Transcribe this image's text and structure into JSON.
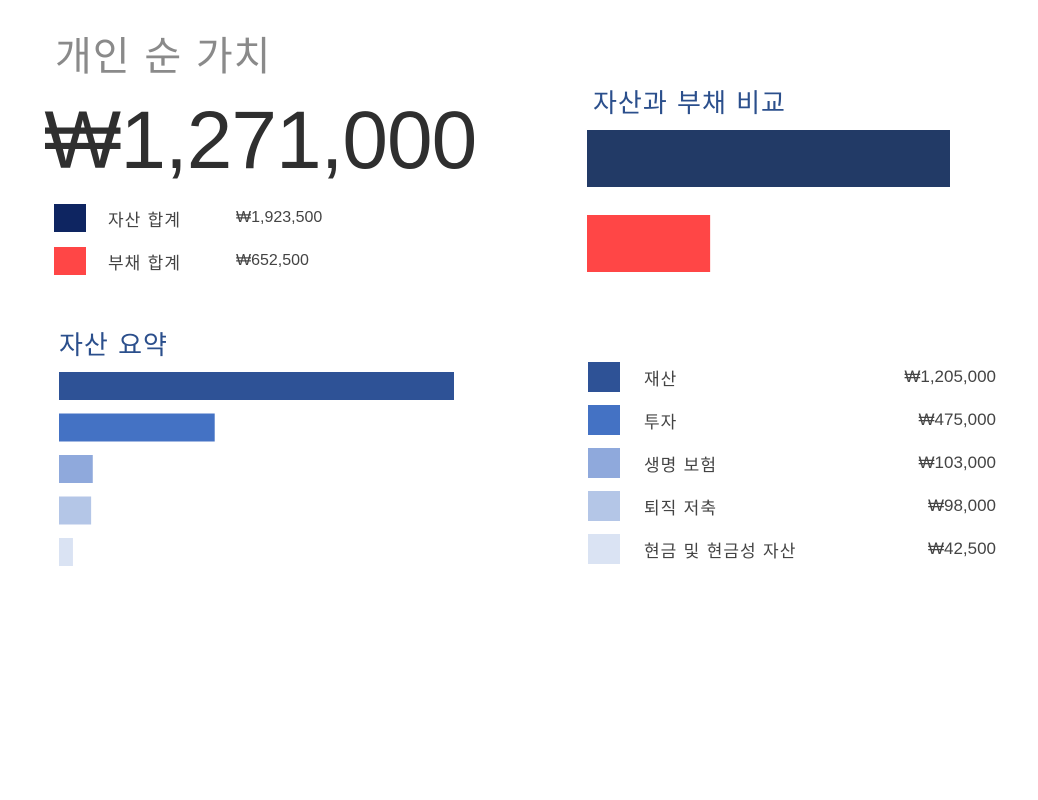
{
  "page": {
    "title": "개인 순 가치",
    "net_worth": "₩1,271,000"
  },
  "totals": [
    {
      "label": "자산 합계",
      "value": "₩1,923,500",
      "color": "#0e2561"
    },
    {
      "label": "부채 합계",
      "value": "₩652,500",
      "color": "#ff4646"
    }
  ],
  "assets": [
    {
      "label": "재산",
      "value": "₩1,205,000",
      "color": "#2e5296"
    },
    {
      "label": "투자",
      "value": "₩475,000",
      "color": "#4472c4"
    },
    {
      "label": "생명 보험",
      "value": "₩103,000",
      "color": "#8fa9dc"
    },
    {
      "label": "퇴직 저축",
      "value": "₩98,000",
      "color": "#b4c6e7"
    },
    {
      "label": "현금 및 현금성 자산",
      "value": "₩42,500",
      "color": "#dae3f3"
    }
  ],
  "chart_data": [
    {
      "type": "bar",
      "orientation": "horizontal",
      "title": "자산과 부채 비교",
      "categories": [
        "자산 합계",
        "부채 합계"
      ],
      "values": [
        1923500,
        652500
      ],
      "colors": [
        "#223a66",
        "#ff4646"
      ],
      "grid": false
    },
    {
      "type": "bar",
      "orientation": "horizontal",
      "title": "자산 요약",
      "categories": [
        "재산",
        "투자",
        "생명 보험",
        "퇴직 저축",
        "현금 및 현금성 자산"
      ],
      "values": [
        1205000,
        475000,
        103000,
        98000,
        42500
      ],
      "colors": [
        "#2e5296",
        "#4472c4",
        "#8fa9dc",
        "#b4c6e7",
        "#dae3f3"
      ],
      "grid": false
    }
  ]
}
